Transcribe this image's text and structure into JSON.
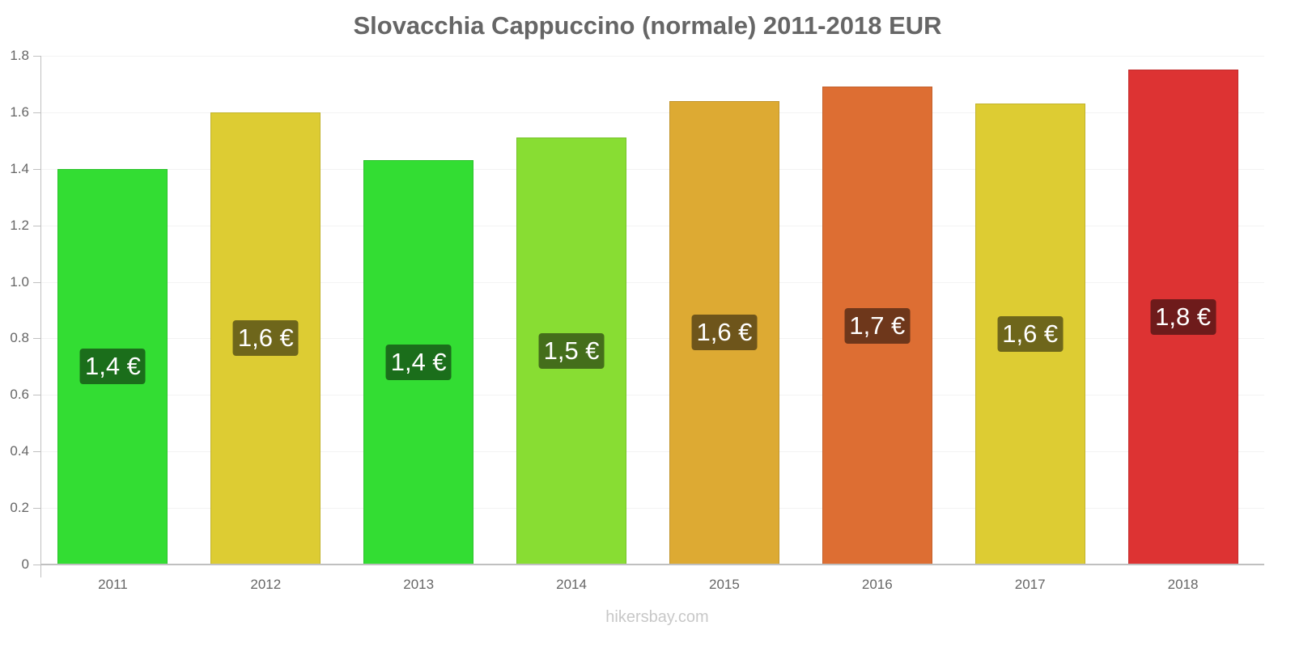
{
  "chart_data": {
    "type": "bar",
    "title": "Slovacchia Cappuccino (normale) 2011-2018 EUR",
    "xlabel": "",
    "ylabel": "",
    "ylim": [
      0,
      1.8
    ],
    "yticks": [
      0,
      0.2,
      0.4,
      0.6,
      0.8,
      1.0,
      1.2,
      1.4,
      1.6,
      1.8
    ],
    "ytick_labels": [
      "0",
      "0.2",
      "0.4",
      "0.6",
      "0.8",
      "1.0",
      "1.2",
      "1.4",
      "1.6",
      "1.8"
    ],
    "grid": true,
    "legend": null,
    "categories": [
      "2011",
      "2012",
      "2013",
      "2014",
      "2015",
      "2016",
      "2017",
      "2018"
    ],
    "values": [
      1.4,
      1.6,
      1.43,
      1.51,
      1.64,
      1.69,
      1.63,
      1.75
    ],
    "data_labels": [
      "1,4 €",
      "1,6 €",
      "1,4 €",
      "1,5 €",
      "1,6 €",
      "1,7 €",
      "1,6 €",
      "1,8 €"
    ],
    "bar_colors": [
      "#33dd33",
      "#ddcc33",
      "#33dd33",
      "#88dd33",
      "#ddaa33",
      "#dd6e33",
      "#ddcc33",
      "#dd3333"
    ],
    "label_bg_colors": [
      "#1b6e1b",
      "#6e661b",
      "#1b6e1b",
      "#446e1b",
      "#6e551b",
      "#6e371b",
      "#6e661b",
      "#6e1b1b"
    ],
    "watermark": "hikersbay.com"
  }
}
